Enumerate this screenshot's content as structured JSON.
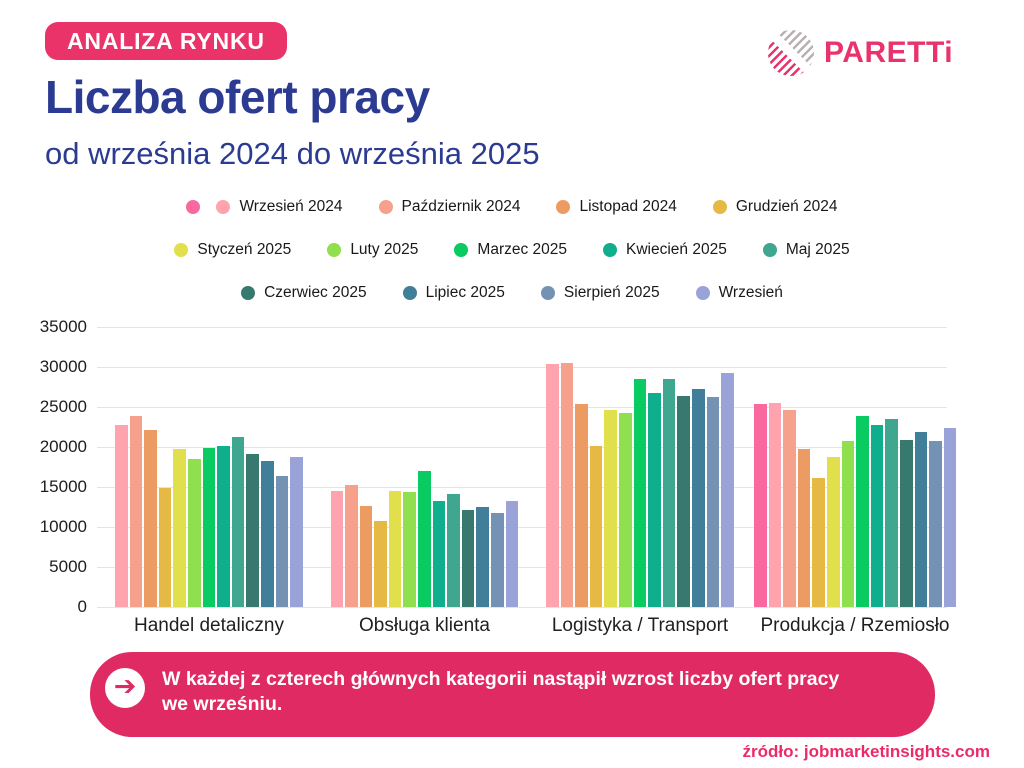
{
  "badge": {
    "label": "ANALIZA RYNKU",
    "color": "#EA3369"
  },
  "header": {
    "title": "Liczba ofert pracy",
    "subtitle": "od września 2024 do września 2025",
    "title_color": "#2B3B92"
  },
  "logo": {
    "text": "PARETTi",
    "pink": "#E8336D",
    "gray": "#B9B0B6"
  },
  "legend": {
    "rows": [
      [
        {
          "swatches": [
            "#F9689F",
            "#FFA3AF"
          ],
          "label": "Wrzesień 2024"
        },
        {
          "swatches": [
            "#F5A18C"
          ],
          "label": "Październik 2024"
        },
        {
          "swatches": [
            "#EC9C62"
          ],
          "label": "Listopad 2024"
        },
        {
          "swatches": [
            "#E6B844"
          ],
          "label": "Grudzień 2024"
        }
      ],
      [
        {
          "swatches": [
            "#E2DF4C"
          ],
          "label": "Styczeń 2025"
        },
        {
          "swatches": [
            "#8FDF4F"
          ],
          "label": "Luty 2025"
        },
        {
          "swatches": [
            "#0ACB61"
          ],
          "label": "Marzec 2025"
        },
        {
          "swatches": [
            "#0FAF8D"
          ],
          "label": "Kwiecień 2025"
        },
        {
          "swatches": [
            "#3FA68F"
          ],
          "label": "Maj 2025"
        }
      ],
      [
        {
          "swatches": [
            "#37796F"
          ],
          "label": "Czerwiec 2025"
        },
        {
          "swatches": [
            "#417E99"
          ],
          "label": "Lipiec 2025"
        },
        {
          "swatches": [
            "#7492B4"
          ],
          "label": "Sierpień 2025"
        },
        {
          "swatches": [
            "#9AA3D8"
          ],
          "label": "Wrzesień"
        }
      ]
    ]
  },
  "chart_data": {
    "type": "bar",
    "title": "Liczba ofert pracy od września 2024 do września 2025",
    "categories": [
      "Handel detaliczny",
      "Obsługa klienta",
      "Logistyka / Transport",
      "Produkcja / Rzemiosło"
    ],
    "ylim": [
      0,
      35000
    ],
    "yticks": [
      0,
      5000,
      10000,
      15000,
      20000,
      25000,
      30000,
      35000
    ],
    "grid": true,
    "legend_position": "top",
    "series": [
      {
        "name": "Wrzesień 2024",
        "color": "#F9689F",
        "values": [
          null,
          null,
          null,
          25400
        ]
      },
      {
        "name": "Wrzesień 2024",
        "color": "#FFA3AF",
        "values": [
          22800,
          14500,
          30400,
          25500
        ]
      },
      {
        "name": "Październik 2024",
        "color": "#F5A18C",
        "values": [
          23900,
          15200,
          30500,
          24600
        ]
      },
      {
        "name": "Listopad 2024",
        "color": "#EC9C62",
        "values": [
          22100,
          12600,
          25400,
          19800
        ]
      },
      {
        "name": "Grudzień 2024",
        "color": "#E6B844",
        "values": [
          14900,
          10800,
          20100,
          16100
        ]
      },
      {
        "name": "Styczeń 2025",
        "color": "#E2DF4C",
        "values": [
          19800,
          14500,
          24600,
          18700
        ]
      },
      {
        "name": "Luty 2025",
        "color": "#8FDF4F",
        "values": [
          18500,
          14400,
          24200,
          20700
        ]
      },
      {
        "name": "Marzec 2025",
        "color": "#0ACB61",
        "values": [
          19900,
          17000,
          28500,
          23900
        ]
      },
      {
        "name": "Kwiecień 2025",
        "color": "#0FAF8D",
        "values": [
          20100,
          13300,
          26700,
          22700
        ]
      },
      {
        "name": "Maj 2025",
        "color": "#3FA68F",
        "values": [
          21200,
          14100,
          28500,
          23500
        ]
      },
      {
        "name": "Czerwiec 2025",
        "color": "#37796F",
        "values": [
          19100,
          12100,
          26400,
          20900
        ]
      },
      {
        "name": "Lipiec 2025",
        "color": "#417E99",
        "values": [
          18300,
          12500,
          27300,
          21900
        ]
      },
      {
        "name": "Sierpień 2025",
        "color": "#7492B4",
        "values": [
          16400,
          11700,
          26200,
          20700
        ]
      },
      {
        "name": "Wrzesień",
        "color": "#9AA3D8",
        "values": [
          18800,
          13200,
          29300,
          22400
        ]
      }
    ]
  },
  "callout": {
    "color": "#E02A64",
    "icon": "arrow-right",
    "lines": [
      "W każdej z czterech głównych kategorii nastąpił wzrost liczby ofert pracy",
      "we wrześniu."
    ]
  },
  "source": "źródło: jobmarketinsights.com"
}
